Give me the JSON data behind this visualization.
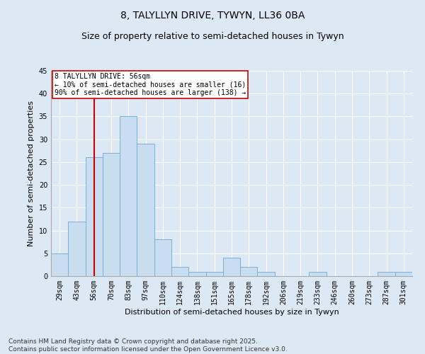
{
  "title1": "8, TALYLLYN DRIVE, TYWYN, LL36 0BA",
  "title2": "Size of property relative to semi-detached houses in Tywyn",
  "xlabel": "Distribution of semi-detached houses by size in Tywyn",
  "ylabel": "Number of semi-detached properties",
  "categories": [
    "29sqm",
    "43sqm",
    "56sqm",
    "70sqm",
    "83sqm",
    "97sqm",
    "110sqm",
    "124sqm",
    "138sqm",
    "151sqm",
    "165sqm",
    "178sqm",
    "192sqm",
    "206sqm",
    "219sqm",
    "233sqm",
    "246sqm",
    "260sqm",
    "273sqm",
    "287sqm",
    "301sqm"
  ],
  "values": [
    5,
    12,
    26,
    27,
    35,
    29,
    8,
    2,
    1,
    1,
    4,
    2,
    1,
    0,
    0,
    1,
    0,
    0,
    0,
    1,
    1
  ],
  "bar_color": "#c9ddf0",
  "bar_edge_color": "#7aafd4",
  "highlight_index": 2,
  "annotation_line1": "8 TALYLLYN DRIVE: 56sqm",
  "annotation_line2": "← 10% of semi-detached houses are smaller (16)",
  "annotation_line3": "90% of semi-detached houses are larger (138) →",
  "red_color": "#cc0000",
  "ylim": [
    0,
    45
  ],
  "yticks": [
    0,
    5,
    10,
    15,
    20,
    25,
    30,
    35,
    40,
    45
  ],
  "footnote1": "Contains HM Land Registry data © Crown copyright and database right 2025.",
  "footnote2": "Contains public sector information licensed under the Open Government Licence v3.0.",
  "bg_color": "#dde8f5",
  "title1_fontsize": 10,
  "title2_fontsize": 9,
  "axis_label_fontsize": 8,
  "tick_fontsize": 7,
  "annotation_fontsize": 7,
  "footnote_fontsize": 6.5
}
